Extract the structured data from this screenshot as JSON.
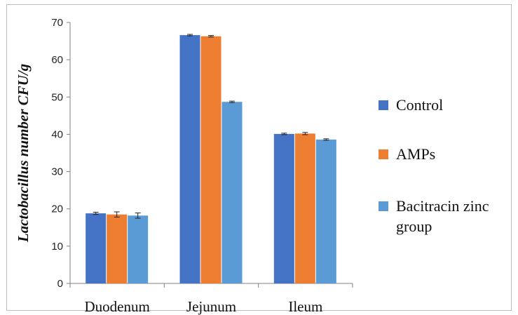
{
  "chart_data": {
    "type": "bar",
    "title": "",
    "xlabel": "",
    "ylabel": "Lactobacillus number CFU/g",
    "ylim": [
      0,
      70
    ],
    "yticks": [
      0,
      10,
      20,
      30,
      40,
      50,
      60,
      70
    ],
    "categories": [
      "Duodenum",
      "Jejunum",
      "Ileum"
    ],
    "series": [
      {
        "name": "Control",
        "color": "#4472c4",
        "values": [
          18.8,
          66.6,
          40.1
        ],
        "errors": [
          0.3,
          0.2,
          0.2
        ]
      },
      {
        "name": "AMPs",
        "color": "#ed7d31",
        "values": [
          18.5,
          66.3,
          40.2
        ],
        "errors": [
          0.7,
          0.2,
          0.3
        ]
      },
      {
        "name": "Bacitracin zinc group",
        "color": "#5b9bd5",
        "values": [
          18.2,
          48.7,
          38.6
        ],
        "errors": [
          0.7,
          0.2,
          0.2
        ]
      }
    ],
    "legend": "right",
    "grid": false
  }
}
